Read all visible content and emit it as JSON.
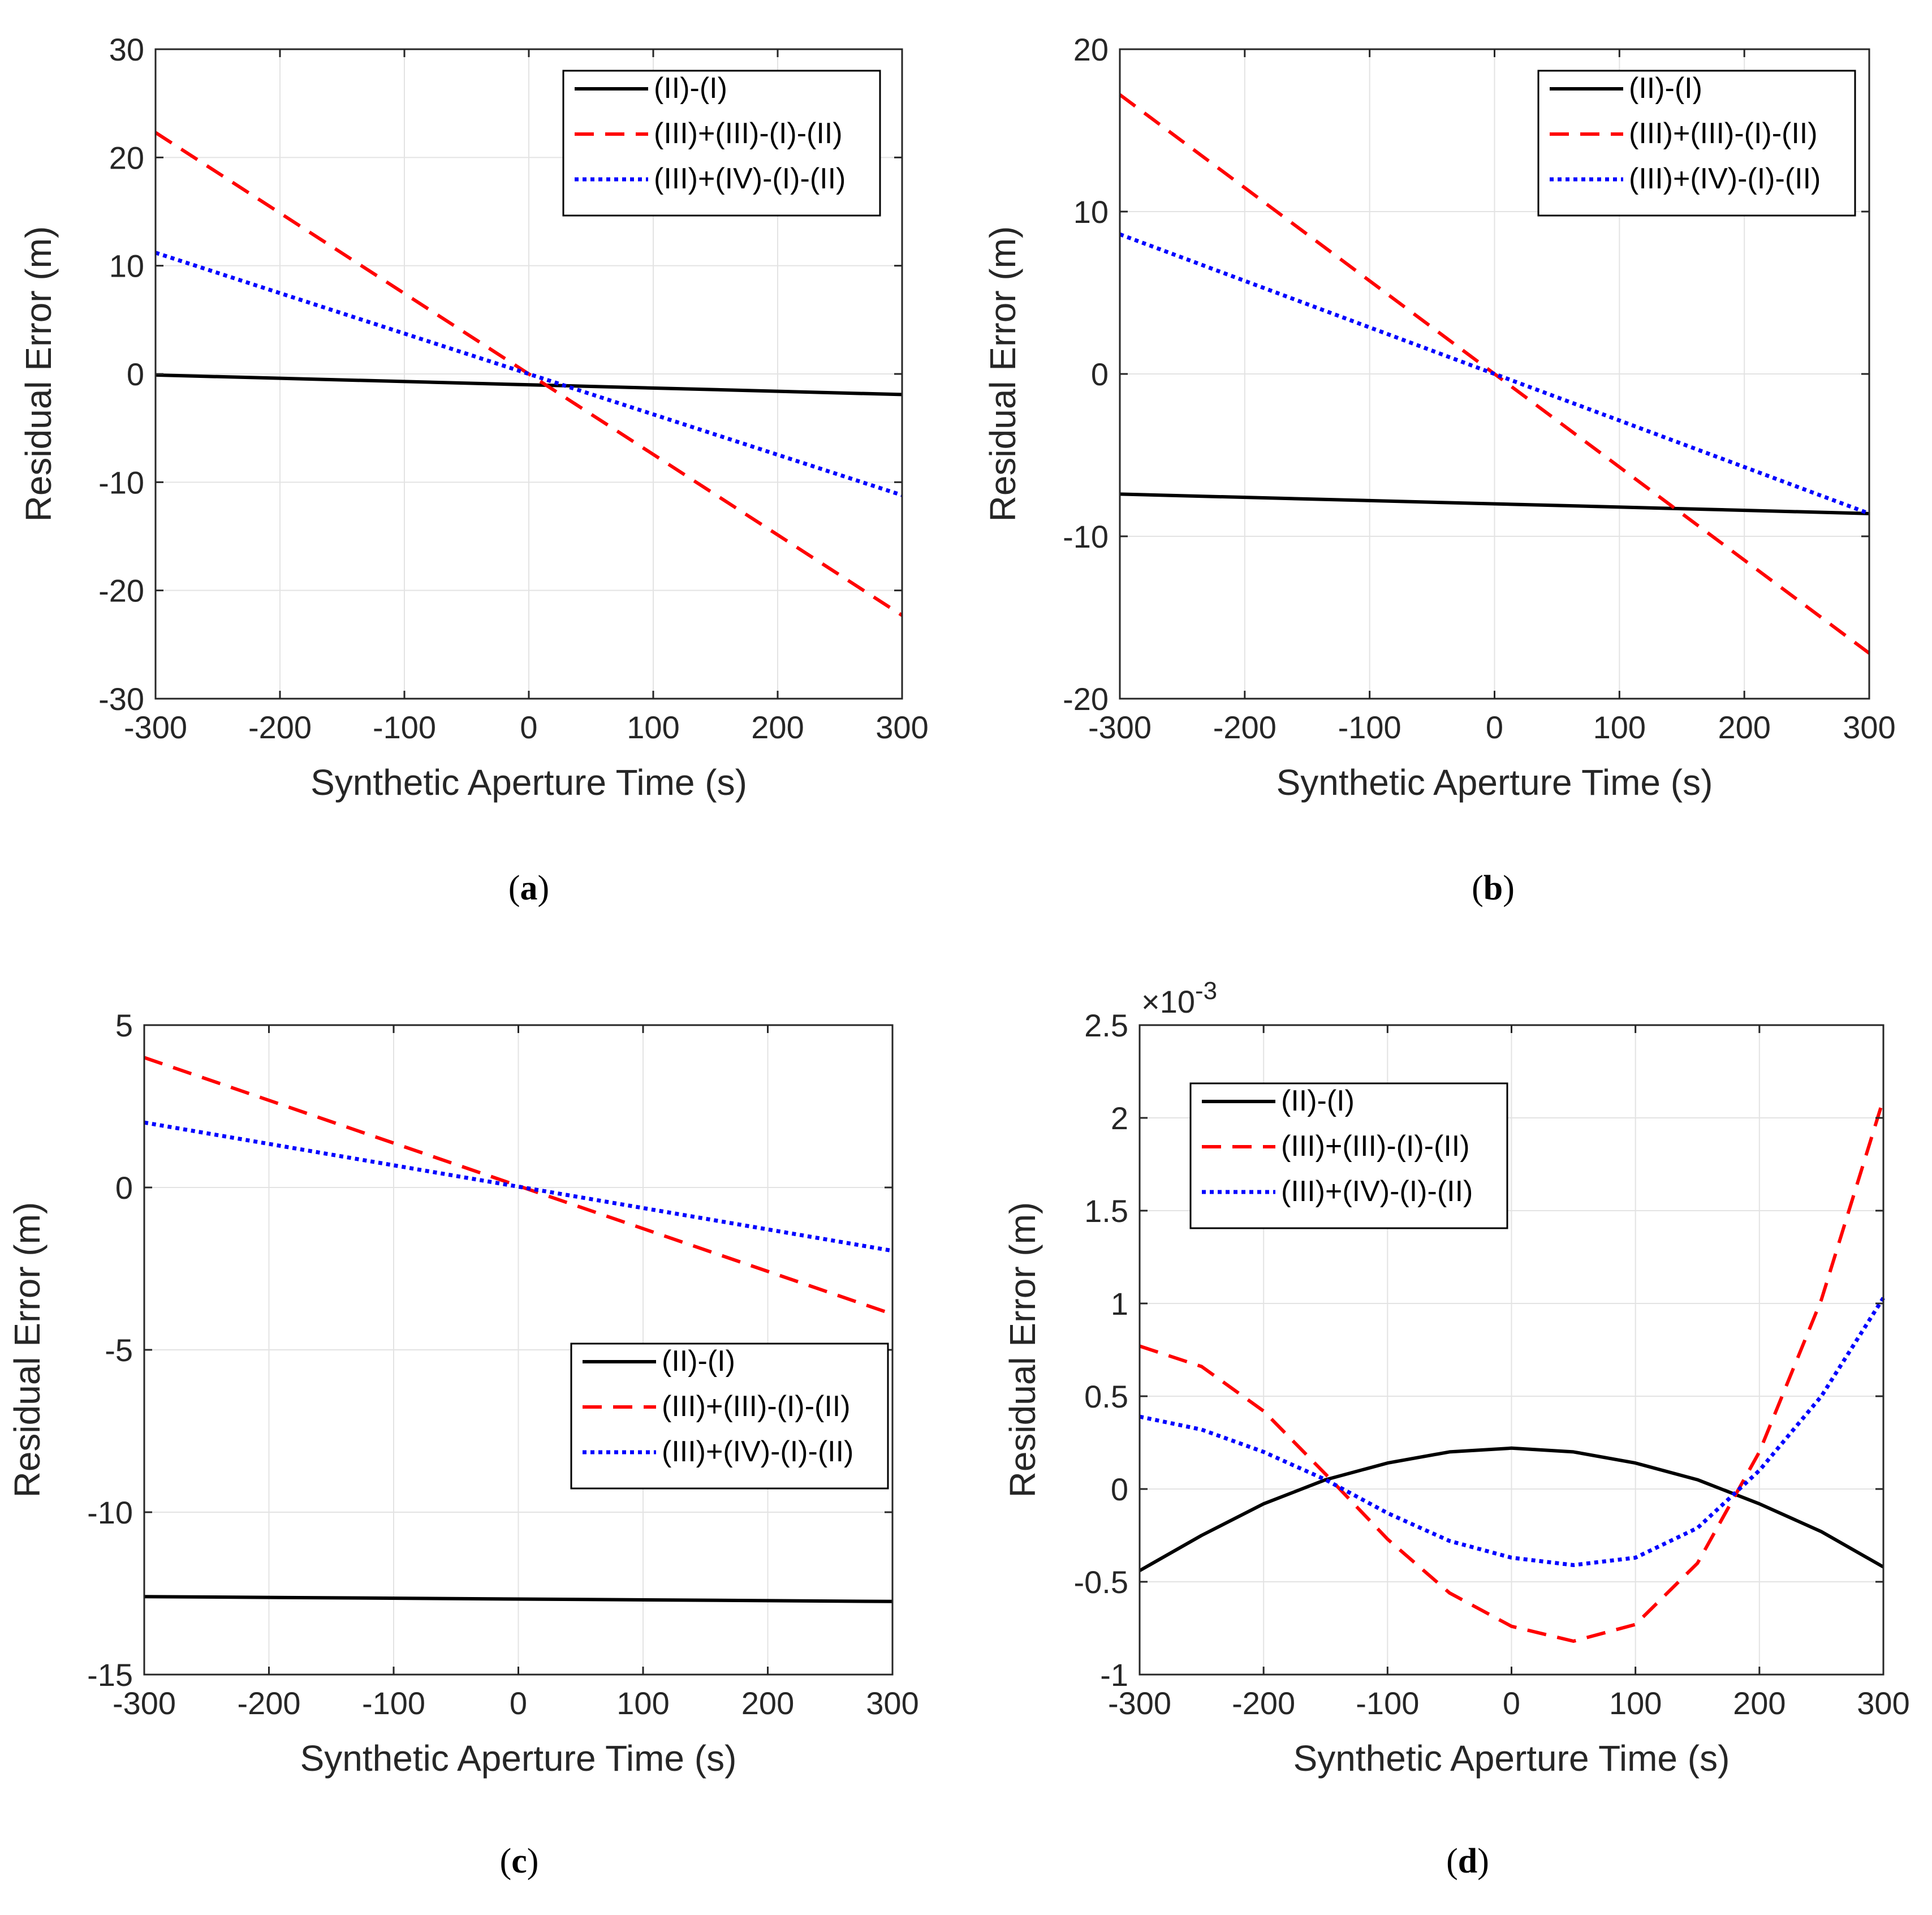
{
  "colors": {
    "black": "#000000",
    "red": "#ff0000",
    "blue": "#0000ff",
    "grid": "#e3e3e3",
    "axis": "#262626"
  },
  "chart_data": [
    {
      "type": "line",
      "caption_letter": "a",
      "xlabel": "Synthetic Aperture Time (s)",
      "ylabel": "Residual Error (m)",
      "xlim": [
        -300,
        300
      ],
      "ylim": [
        -30,
        30
      ],
      "xticks": [
        -300,
        -200,
        -100,
        0,
        100,
        200,
        300
      ],
      "yticks": [
        -30,
        -20,
        -10,
        0,
        10,
        20,
        30
      ],
      "ytick_labels": [
        "-30",
        "-20",
        "-10",
        "0",
        "10",
        "20",
        "30"
      ],
      "exponent_label": "",
      "grid": true,
      "legend_position": "top-right",
      "series": [
        {
          "name": "(II)-(I)",
          "color_key": "black",
          "style": "solid",
          "x": [
            -300,
            300
          ],
          "y": [
            -0.1,
            -1.9
          ]
        },
        {
          "name": "(III)+(III)-(I)-(II)",
          "color_key": "red",
          "style": "dashed",
          "x": [
            -300,
            300
          ],
          "y": [
            22.3,
            -22.3
          ]
        },
        {
          "name": "(III)+(IV)-(I)-(II)",
          "color_key": "blue",
          "style": "dotted",
          "x": [
            -300,
            300
          ],
          "y": [
            11.2,
            -11.2
          ]
        }
      ]
    },
    {
      "type": "line",
      "caption_letter": "b",
      "xlabel": "Synthetic Aperture Time (s)",
      "ylabel": "Residual Error (m)",
      "xlim": [
        -300,
        300
      ],
      "ylim": [
        -20,
        20
      ],
      "xticks": [
        -300,
        -200,
        -100,
        0,
        100,
        200,
        300
      ],
      "yticks": [
        -20,
        -10,
        0,
        10,
        20
      ],
      "ytick_labels": [
        "-20",
        "-10",
        "0",
        "10",
        "20"
      ],
      "exponent_label": "",
      "grid": true,
      "legend_position": "top-right",
      "series": [
        {
          "name": "(II)-(I)",
          "color_key": "black",
          "style": "solid",
          "x": [
            -300,
            300
          ],
          "y": [
            -7.4,
            -8.6
          ]
        },
        {
          "name": "(III)+(III)-(I)-(II)",
          "color_key": "red",
          "style": "dashed",
          "x": [
            -300,
            300
          ],
          "y": [
            17.2,
            -17.2
          ]
        },
        {
          "name": "(III)+(IV)-(I)-(II)",
          "color_key": "blue",
          "style": "dotted",
          "x": [
            -300,
            300
          ],
          "y": [
            8.6,
            -8.6
          ]
        }
      ]
    },
    {
      "type": "line",
      "caption_letter": "c",
      "xlabel": "Synthetic Aperture Time (s)",
      "ylabel": "Residual Error (m)",
      "xlim": [
        -300,
        300
      ],
      "ylim": [
        -15,
        5
      ],
      "xticks": [
        -300,
        -200,
        -100,
        0,
        100,
        200,
        300
      ],
      "yticks": [
        -15,
        -10,
        -5,
        0,
        5
      ],
      "ytick_labels": [
        "-15",
        "-10",
        "-5",
        "0",
        "5"
      ],
      "exponent_label": "",
      "grid": true,
      "legend_position": "lower-right",
      "series": [
        {
          "name": "(II)-(I)",
          "color_key": "black",
          "style": "solid",
          "x": [
            -300,
            300
          ],
          "y": [
            -12.6,
            -12.75
          ]
        },
        {
          "name": "(III)+(III)-(I)-(II)",
          "color_key": "red",
          "style": "dashed",
          "x": [
            -300,
            300
          ],
          "y": [
            4.0,
            -3.9
          ]
        },
        {
          "name": "(III)+(IV)-(I)-(II)",
          "color_key": "blue",
          "style": "dotted",
          "x": [
            -300,
            300
          ],
          "y": [
            2.0,
            -1.95
          ]
        }
      ]
    },
    {
      "type": "line",
      "caption_letter": "d",
      "xlabel": "Synthetic Aperture Time (s)",
      "ylabel": "Residual Error (m)",
      "xlim": [
        -300,
        300
      ],
      "ylim": [
        -1,
        2.5
      ],
      "xticks": [
        -300,
        -200,
        -100,
        0,
        100,
        200,
        300
      ],
      "yticks": [
        -1,
        -0.5,
        0,
        0.5,
        1,
        1.5,
        2,
        2.5
      ],
      "ytick_labels": [
        "-1",
        "-0.5",
        "0",
        "0.5",
        "1",
        "1.5",
        "2",
        "2.5"
      ],
      "exponent_label": "×10",
      "exponent_power": "-3",
      "grid": true,
      "legend_position": "top-left",
      "series": [
        {
          "name": "(II)-(I)",
          "color_key": "black",
          "style": "solid",
          "x": [
            -300,
            -250,
            -200,
            -150,
            -100,
            -50,
            0,
            50,
            100,
            150,
            200,
            250,
            300
          ],
          "y": [
            -0.44,
            -0.25,
            -0.08,
            0.05,
            0.14,
            0.2,
            0.22,
            0.2,
            0.14,
            0.05,
            -0.08,
            -0.23,
            -0.42
          ]
        },
        {
          "name": "(III)+(III)-(I)-(II)",
          "color_key": "red",
          "style": "dashed",
          "x": [
            -300,
            -250,
            -200,
            -150,
            -100,
            -50,
            0,
            50,
            100,
            150,
            200,
            250,
            300
          ],
          "y": [
            0.77,
            0.66,
            0.42,
            0.08,
            -0.27,
            -0.56,
            -0.74,
            -0.82,
            -0.73,
            -0.4,
            0.2,
            1.02,
            2.1
          ]
        },
        {
          "name": "(III)+(IV)-(I)-(II)",
          "color_key": "blue",
          "style": "dotted",
          "x": [
            -300,
            -250,
            -200,
            -150,
            -100,
            -50,
            0,
            50,
            100,
            150,
            200,
            250,
            300
          ],
          "y": [
            0.39,
            0.32,
            0.2,
            0.05,
            -0.13,
            -0.28,
            -0.37,
            -0.41,
            -0.37,
            -0.21,
            0.1,
            0.5,
            1.03
          ]
        }
      ]
    }
  ]
}
